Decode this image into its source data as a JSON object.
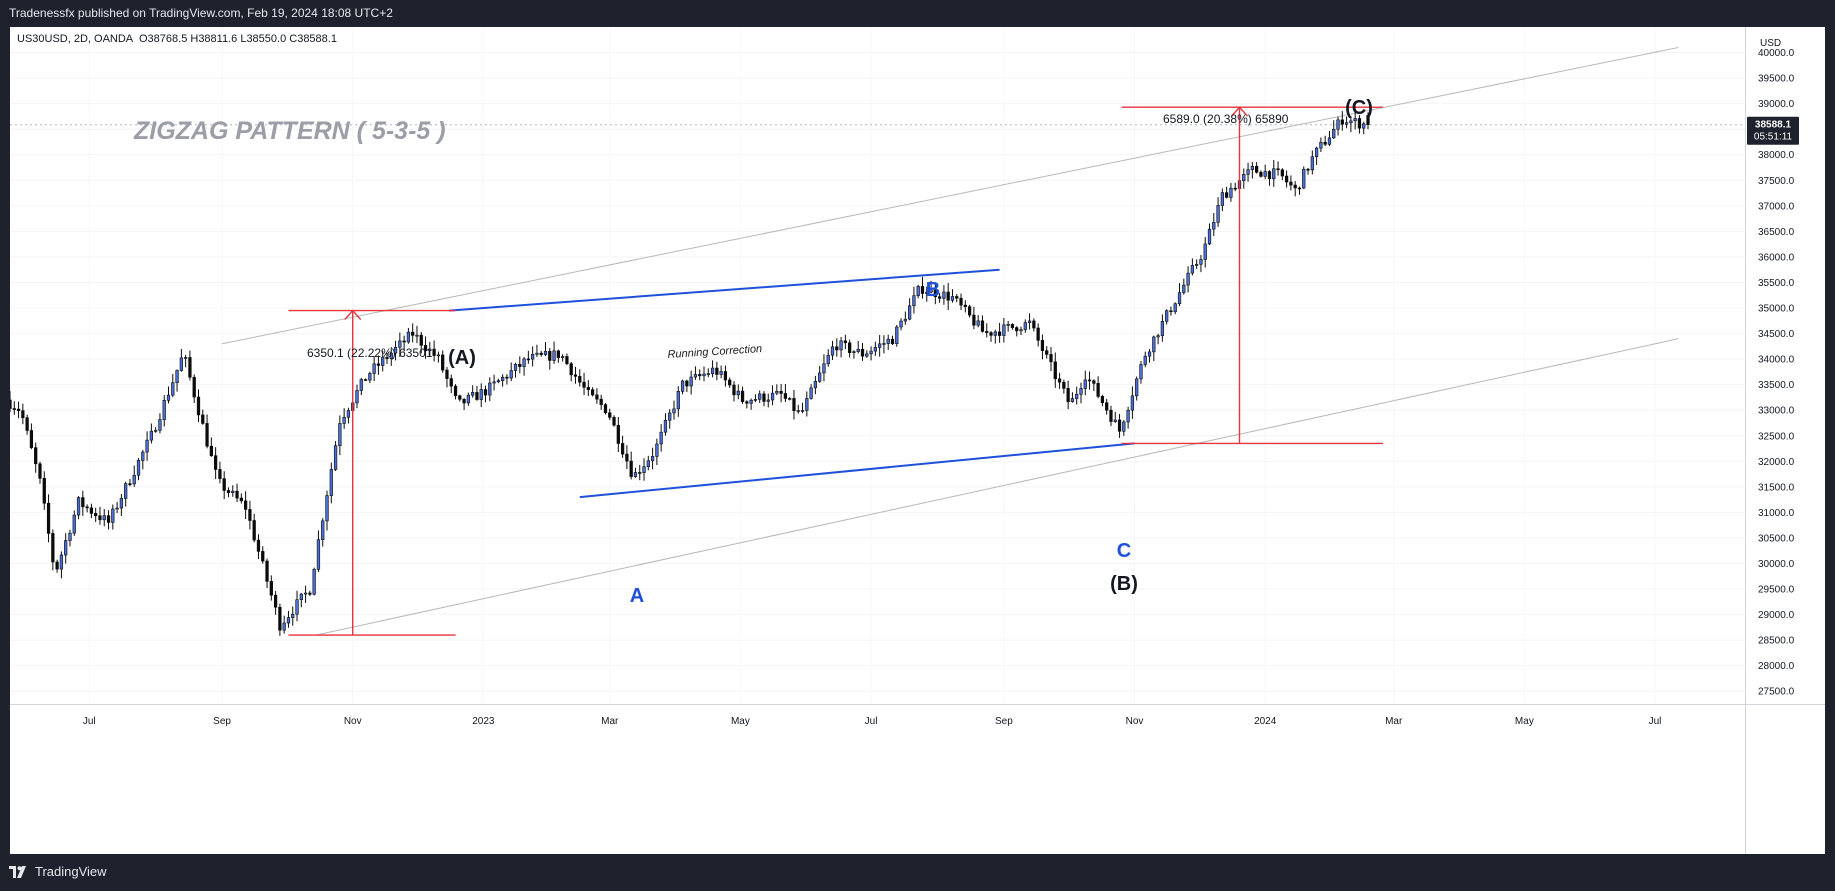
{
  "header": {
    "publisher_line": "Tradenessfx published on TradingView.com, Feb 19, 2024 18:08 UTC+2"
  },
  "footer": {
    "brand": "TradingView",
    "logo_icon": "tradingview-logo-icon"
  },
  "legend": {
    "symbol": "US30USD, 2D, OANDA",
    "ohlc": "O38768.5 H38811.6 L38550.0 C38588.1"
  },
  "price_axis": {
    "currency": "USD",
    "last_price": "38588.1",
    "countdown": "05:51:11"
  },
  "colors": {
    "up": "#4a6fd8",
    "down": "#0b0b0b",
    "measure": "#e8323c",
    "wave_blue": "#1e50dc",
    "channel": "#b8b8b8",
    "title": "#9b9ea6",
    "frame": "#1e222d"
  },
  "annotations": {
    "title": "ZIGZAG PATTERN ( 5-3-5 )",
    "running_correction": "Running Correction",
    "measure_1": "6350.1 (22.22%) 63501",
    "measure_2": "6589.0 (20.38%) 65890",
    "wave_A_major": "(A)",
    "wave_B_major": "(B)",
    "wave_C_major": "(C)",
    "wave_a_minor": "A",
    "wave_b_minor": "B",
    "wave_c_minor": "C"
  },
  "chart_data": {
    "type": "candlestick",
    "ylim": [
      27250,
      40500
    ],
    "y_ticks": [
      27500,
      28000,
      28500,
      29000,
      29500,
      30000,
      30500,
      31000,
      31500,
      32000,
      32500,
      33000,
      33500,
      34000,
      34500,
      35000,
      35500,
      36000,
      36500,
      37000,
      37500,
      38000,
      38500,
      39000,
      39500,
      40000
    ],
    "x_tick_labels": [
      "Jul",
      "Sep",
      "Nov",
      "2023",
      "Mar",
      "May",
      "Jul",
      "Sep",
      "Nov",
      "2024",
      "Mar",
      "May",
      "Jul"
    ],
    "x_ticks": [
      "2022-07-01",
      "2022-09-01",
      "2022-11-01",
      "2023-01-01",
      "2023-03-01",
      "2023-05-01",
      "2023-07-01",
      "2023-09-01",
      "2023-11-01",
      "2024-01-01",
      "2024-03-01",
      "2024-05-01",
      "2024-07-01"
    ],
    "xlim": [
      "2022-05-25",
      "2024-08-12"
    ],
    "interval": "2D",
    "path_points": [
      [
        "2022-05-25",
        33200
      ],
      [
        "2022-06-01",
        33000
      ],
      [
        "2022-06-10",
        31600
      ],
      [
        "2022-06-17",
        29800
      ],
      [
        "2022-06-28",
        31200
      ],
      [
        "2022-07-12",
        30800
      ],
      [
        "2022-08-01",
        32500
      ],
      [
        "2022-08-16",
        34100
      ],
      [
        "2022-09-01",
        31600
      ],
      [
        "2022-09-14",
        31100
      ],
      [
        "2022-09-30",
        28800
      ],
      [
        "2022-10-14",
        29500
      ],
      [
        "2022-10-28",
        32800
      ],
      [
        "2022-11-10",
        33700
      ],
      [
        "2022-12-01",
        34500
      ],
      [
        "2022-12-13",
        34000
      ],
      [
        "2022-12-22",
        33100
      ],
      [
        "2023-01-05",
        33400
      ],
      [
        "2023-01-24",
        34000
      ],
      [
        "2023-02-08",
        34100
      ],
      [
        "2023-02-21",
        33300
      ],
      [
        "2023-03-02",
        33000
      ],
      [
        "2023-03-14",
        31700
      ],
      [
        "2023-03-24",
        32200
      ],
      [
        "2023-04-06",
        33500
      ],
      [
        "2023-04-21",
        33800
      ],
      [
        "2023-05-04",
        33200
      ],
      [
        "2023-05-22",
        33300
      ],
      [
        "2023-05-31",
        32900
      ],
      [
        "2023-06-16",
        34300
      ],
      [
        "2023-06-29",
        34100
      ],
      [
        "2023-07-13",
        34400
      ],
      [
        "2023-07-26",
        35400
      ],
      [
        "2023-08-10",
        35200
      ],
      [
        "2023-08-25",
        34500
      ],
      [
        "2023-09-15",
        34700
      ],
      [
        "2023-09-29",
        33500
      ],
      [
        "2023-10-04",
        33100
      ],
      [
        "2023-10-11",
        33700
      ],
      [
        "2023-10-20",
        33100
      ],
      [
        "2023-10-27",
        32600
      ],
      [
        "2023-11-08",
        34100
      ],
      [
        "2023-11-24",
        35300
      ],
      [
        "2023-12-05",
        36100
      ],
      [
        "2023-12-14",
        37200
      ],
      [
        "2023-12-28",
        37700
      ],
      [
        "2024-01-10",
        37600
      ],
      [
        "2024-01-17",
        37300
      ],
      [
        "2024-01-26",
        38000
      ],
      [
        "2024-02-08",
        38700
      ],
      [
        "2024-02-19",
        38588
      ]
    ]
  }
}
